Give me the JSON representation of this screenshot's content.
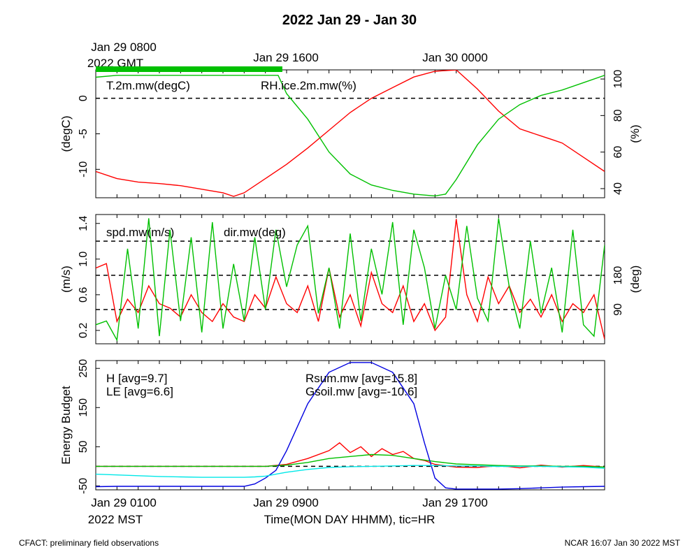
{
  "title": "2022 Jan 29 - Jan 30",
  "top_time_labels": [
    "Jan 29 0800",
    "2022 GMT",
    "Jan 29 1600",
    "Jan 30 0000"
  ],
  "bottom_time_labels": [
    "Jan 29 0100",
    "2022 MST",
    "Jan 29 0900",
    "Jan 29 1700"
  ],
  "xlabel": "Time(MON DAY HHMM), tic=HR",
  "footer_left": "CFACT: preliminary field observations",
  "footer_right": "NCAR 16:07 Jan 30 2022 MST",
  "chart_data": [
    {
      "type": "line",
      "ylabel_left": "(degC)",
      "ylabel_right": "(%)",
      "ylim_left": [
        -14,
        4
      ],
      "yticks_left": [
        "0",
        "-5",
        "-10"
      ],
      "ylim_right": [
        35,
        105
      ],
      "yticks_right": [
        "100",
        "80",
        "60",
        "40"
      ],
      "hlines": [
        0
      ],
      "x_hours": [
        0,
        24
      ],
      "series": [
        {
          "name": "T.2m.mw(degC)",
          "color": "#ff0000",
          "axis": "left",
          "x": [
            0,
            1,
            2,
            3,
            4,
            5,
            6,
            6.5,
            7,
            8,
            9,
            10,
            11,
            12,
            13,
            14,
            15,
            16,
            17,
            18,
            19,
            20,
            21,
            21.5,
            22,
            23,
            24
          ],
          "y": [
            -10.3,
            -11.3,
            -11.8,
            -12,
            -12.3,
            -12.8,
            -13.3,
            -13.8,
            -13.3,
            -11.3,
            -9.3,
            -7,
            -4.5,
            -2,
            0,
            1.5,
            3,
            3.8,
            4,
            1.3,
            -1.8,
            -4.3,
            -5.3,
            -5.8,
            -6.3,
            -8.3,
            -10.3
          ]
        },
        {
          "name": "RH.ice.2m.mw(%)",
          "color": "#00c000",
          "axis": "right",
          "x": [
            0,
            1,
            2,
            3,
            4,
            5,
            6,
            7,
            8,
            8.6,
            9,
            10,
            11,
            12,
            13,
            14,
            15,
            16,
            16.5,
            17,
            18,
            19,
            20,
            21,
            22,
            23,
            24
          ],
          "y": [
            101,
            102,
            102,
            102,
            102,
            102,
            102,
            102,
            102,
            102,
            92,
            78,
            60,
            48,
            42,
            39,
            37,
            36,
            37,
            45,
            64,
            78,
            86,
            91,
            94,
            98,
            102
          ]
        }
      ]
    },
    {
      "type": "line",
      "ylabel_left": "(m/s)",
      "ylabel_right": "(deg)",
      "ylim_left": [
        0.05,
        1.5
      ],
      "yticks_left": [
        "0.2",
        "0.6",
        "1.0",
        "1.4"
      ],
      "ylim_right": [
        0,
        340
      ],
      "yticks_right": [
        "90",
        "180"
      ],
      "hlines_right": [
        90,
        180,
        270
      ],
      "x_hours": [
        0,
        24
      ],
      "series": [
        {
          "name": "spd.mw(m/s)",
          "color": "#ff0000",
          "axis": "left",
          "x": [
            0,
            0.5,
            1,
            1.5,
            2,
            2.5,
            3,
            3.5,
            4,
            4.5,
            5,
            5.5,
            6,
            6.5,
            7,
            7.5,
            8,
            8.5,
            9,
            9.5,
            10,
            10.5,
            11,
            11.5,
            12,
            12.5,
            13,
            13.5,
            14,
            14.5,
            15,
            15.5,
            16,
            16.5,
            17,
            17.5,
            18,
            18.5,
            19,
            19.5,
            20,
            20.5,
            21,
            21.5,
            22,
            22.5,
            23,
            23.5,
            24
          ],
          "y": [
            0.9,
            0.95,
            0.3,
            0.55,
            0.4,
            0.7,
            0.5,
            0.45,
            0.35,
            0.6,
            0.4,
            0.3,
            0.5,
            0.35,
            0.3,
            0.6,
            0.45,
            0.8,
            0.5,
            0.4,
            0.7,
            0.3,
            0.9,
            0.35,
            0.6,
            0.25,
            0.85,
            0.5,
            0.4,
            0.7,
            0.3,
            0.5,
            0.2,
            0.35,
            1.45,
            0.6,
            0.3,
            0.8,
            0.5,
            0.7,
            0.4,
            0.55,
            0.35,
            0.6,
            0.3,
            0.5,
            0.4,
            0.6,
            0.1
          ]
        },
        {
          "name": "dir.mw(deg)",
          "color": "#00c000",
          "axis": "right",
          "x": [
            0,
            0.5,
            1,
            1.5,
            2,
            2.5,
            3,
            3.5,
            4,
            4.5,
            5,
            5.5,
            6,
            6.5,
            7,
            7.5,
            8,
            8.5,
            9,
            9.5,
            10,
            10.5,
            11,
            11.5,
            12,
            12.5,
            13,
            13.5,
            14,
            14.5,
            15,
            15.5,
            16,
            16.5,
            17,
            17.5,
            18,
            18.5,
            19,
            19.5,
            20,
            20.5,
            21,
            21.5,
            22,
            22.5,
            23,
            23.5,
            24
          ],
          "y": [
            50,
            60,
            10,
            250,
            40,
            330,
            20,
            300,
            60,
            280,
            30,
            320,
            40,
            210,
            60,
            280,
            90,
            300,
            150,
            260,
            310,
            80,
            200,
            40,
            290,
            60,
            250,
            130,
            320,
            50,
            300,
            200,
            40,
            180,
            90,
            310,
            120,
            60,
            330,
            150,
            40,
            270,
            80,
            200,
            30,
            300,
            50,
            20,
            260
          ]
        }
      ]
    },
    {
      "type": "line",
      "ylabel_left": "Energy Budget",
      "ylim": [
        -60,
        270
      ],
      "yticks": [
        "-50",
        "50",
        "150",
        "250"
      ],
      "hlines": [
        0
      ],
      "x_hours": [
        0,
        24
      ],
      "series": [
        {
          "name": "H [avg=9.7]",
          "color": "#ff0000",
          "x": [
            0,
            2,
            4,
            6,
            8,
            9,
            10,
            11,
            11.5,
            12,
            12.5,
            13,
            13.5,
            14,
            14.5,
            15,
            15.5,
            16,
            17,
            18,
            19,
            20,
            21,
            22,
            23,
            24
          ],
          "y": [
            0,
            0,
            0,
            0,
            0,
            5,
            20,
            40,
            60,
            35,
            50,
            25,
            45,
            30,
            38,
            20,
            15,
            5,
            -2,
            -3,
            2,
            -4,
            3,
            -2,
            2,
            -2
          ]
        },
        {
          "name": "LE [avg=6.6]",
          "color": "#00c000",
          "x": [
            0,
            2,
            4,
            6,
            8,
            9,
            10,
            11,
            12,
            13,
            14,
            15,
            16,
            17,
            18,
            19,
            20,
            21,
            22,
            23,
            24
          ],
          "y": [
            0,
            0,
            0,
            0,
            0,
            3,
            10,
            20,
            25,
            30,
            28,
            20,
            12,
            6,
            4,
            2,
            1,
            1,
            0,
            0,
            -2
          ]
        },
        {
          "name": "Rsum.mw [avg=15.8]",
          "color": "#0000e0",
          "x": [
            0,
            1,
            2,
            3,
            4,
            5,
            6,
            7,
            7.5,
            8,
            8.5,
            9,
            10,
            11,
            12,
            13,
            14,
            15,
            15.5,
            16,
            16.5,
            17,
            18,
            19,
            20,
            21,
            22,
            23,
            24
          ],
          "y": [
            -52,
            -51,
            -51,
            -51,
            -51,
            -51,
            -51,
            -51,
            -45,
            -30,
            -10,
            40,
            160,
            240,
            265,
            265,
            240,
            160,
            60,
            -30,
            -55,
            -58,
            -58,
            -58,
            -57,
            -55,
            -53,
            -52,
            -51
          ]
        },
        {
          "name": "Gsoil.mw [avg=-10.6]",
          "color": "#00e8e8",
          "x": [
            0,
            1,
            2,
            3,
            4,
            5,
            6,
            7,
            7.5,
            8,
            8.5,
            9,
            10,
            11,
            12,
            13,
            14,
            15,
            16,
            17,
            18,
            19,
            20,
            21,
            22,
            23,
            24
          ],
          "y": [
            -20,
            -22,
            -24,
            -26,
            -27,
            -28,
            -28,
            -28,
            -27,
            -25,
            -20,
            -15,
            -8,
            -3,
            -1,
            0,
            1,
            2,
            2,
            1,
            1,
            0,
            0,
            0,
            -1,
            -2,
            -5
          ]
        }
      ]
    }
  ]
}
